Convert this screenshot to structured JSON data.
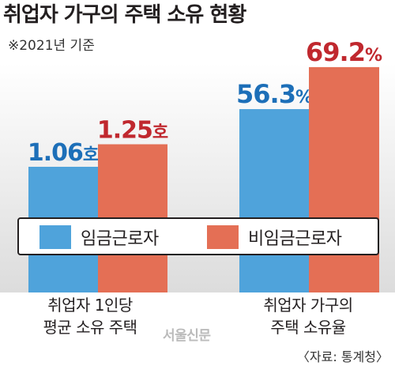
{
  "chart_data": {
    "type": "bar",
    "title": "취업자 가구의 주택 소유 현황",
    "subtitle": "※2021년 기준",
    "categories": [
      "취업자 1인당\n평균 소유 주택",
      "취업자 가구의\n주택 소유율"
    ],
    "series": [
      {
        "name": "임금근로자",
        "color": "#4fa3db",
        "label_color": "#1d6fb8",
        "values": [
          1.06,
          56.3
        ],
        "units": [
          "호",
          "%"
        ]
      },
      {
        "name": "비임금근로자",
        "color": "#e46f55",
        "label_color": "#c0282e",
        "values": [
          1.25,
          69.2
        ],
        "units": [
          "호",
          "%"
        ]
      }
    ],
    "legend_position": "middle",
    "grid": false
  },
  "watermark": "서울신문",
  "source": "〈자료: 통계청〉"
}
